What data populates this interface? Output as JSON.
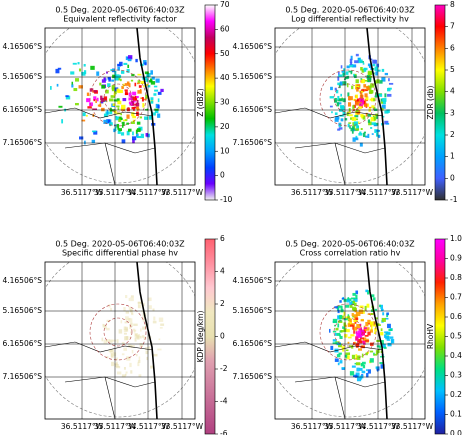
{
  "panels": [
    {
      "title": "0.5 Deg. 2020-05-06T06:40:03Z",
      "subtitle": "Equivalent reflectivity factor",
      "yticks": [
        "4.16506°S",
        "5.16506°S",
        "6.16506°S",
        "7.16506°S"
      ],
      "xticks": [
        "36.5117°W",
        "35.5117°W",
        "34.5117°W",
        "33.5117°W"
      ],
      "colorbar": {
        "label": "Z (dBZ)",
        "lim": [
          -10,
          70
        ],
        "ticks": [
          -10,
          0,
          10,
          20,
          30,
          40,
          50,
          60,
          70
        ],
        "colors": [
          "#f0f0f0",
          "#6a00ff",
          "#0040ff",
          "#00a0ff",
          "#00e0e0",
          "#00c000",
          "#80e000",
          "#ffff00",
          "#ff8000",
          "#ff0000",
          "#c00060",
          "#ff00ff",
          "#ffffff"
        ]
      }
    },
    {
      "title": "0.5 Deg. 2020-05-06T06:40:03Z",
      "subtitle": "Log differential reflectivity hv",
      "yticks": [
        "4.16506°S",
        "5.16506°S",
        "6.16506°S",
        "7.16506°S"
      ],
      "xticks": [
        "36.5117°W",
        "35.5117°W",
        "34.5117°W",
        "33.5117°W"
      ],
      "colorbar": {
        "label": "ZDR (db)",
        "lim": [
          -1,
          8
        ],
        "ticks": [
          -1,
          0,
          1,
          2,
          3,
          4,
          5,
          6,
          7,
          8
        ],
        "colors": [
          "#303030",
          "#4060ff",
          "#00a0ff",
          "#00e0e0",
          "#00c060",
          "#80e000",
          "#ffff00",
          "#ff8000",
          "#ff0000",
          "#ff00c0"
        ]
      }
    },
    {
      "title": "0.5 Deg. 2020-05-06T06:40:03Z",
      "subtitle": "Specific differential phase hv",
      "yticks": [
        "4.16506°S",
        "5.16506°S",
        "6.16506°S",
        "7.16506°S"
      ],
      "xticks": [
        "36.5117°W",
        "35.5117°W",
        "34.5117°W",
        "33.5117°W"
      ],
      "colorbar": {
        "label": "KDP (deg/km)",
        "lim": [
          -6,
          6
        ],
        "ticks": [
          -6,
          -4,
          -2,
          0,
          2,
          4,
          6
        ],
        "colors": [
          "#b04080",
          "#c06090",
          "#d080a0",
          "#e0a0b0",
          "#e8e0b0",
          "#f0e8c0",
          "#ffc8d0",
          "#ff90a0",
          "#ff6070"
        ]
      }
    },
    {
      "title": "0.5 Deg. 2020-05-06T06:40:03Z",
      "subtitle": "Cross correlation ratio hv",
      "yticks": [
        "4.16506°S",
        "5.16506°S",
        "6.16506°S",
        "7.16506°S"
      ],
      "xticks": [
        "36.5117°W",
        "35.5117°W",
        "34.5117°W",
        "33.5117°W"
      ],
      "colorbar": {
        "label": "RhoHV",
        "lim": [
          0,
          1
        ],
        "ticks": [
          {
            "value": 0,
            "label": "0.0"
          },
          {
            "value": 0.1,
            "label": "0.1"
          },
          {
            "value": 0.2,
            "label": "0.2"
          },
          {
            "value": 0.3,
            "label": "0.3"
          },
          {
            "value": 0.4,
            "label": "0.4"
          },
          {
            "value": 0.5,
            "label": "0.5"
          },
          {
            "value": 0.6,
            "label": "0.6"
          },
          {
            "value": 0.7,
            "label": "0.7"
          },
          {
            "value": 0.8,
            "label": "0.8"
          },
          {
            "value": 0.9,
            "label": "0.9"
          },
          {
            "value": 1,
            "label": "1.0"
          }
        ],
        "colors": [
          "#2020a0",
          "#0060ff",
          "#00c0ff",
          "#00e080",
          "#80e000",
          "#ffff00",
          "#ffa000",
          "#ff2000",
          "#ff00a0",
          "#ff00ff"
        ]
      }
    }
  ]
}
